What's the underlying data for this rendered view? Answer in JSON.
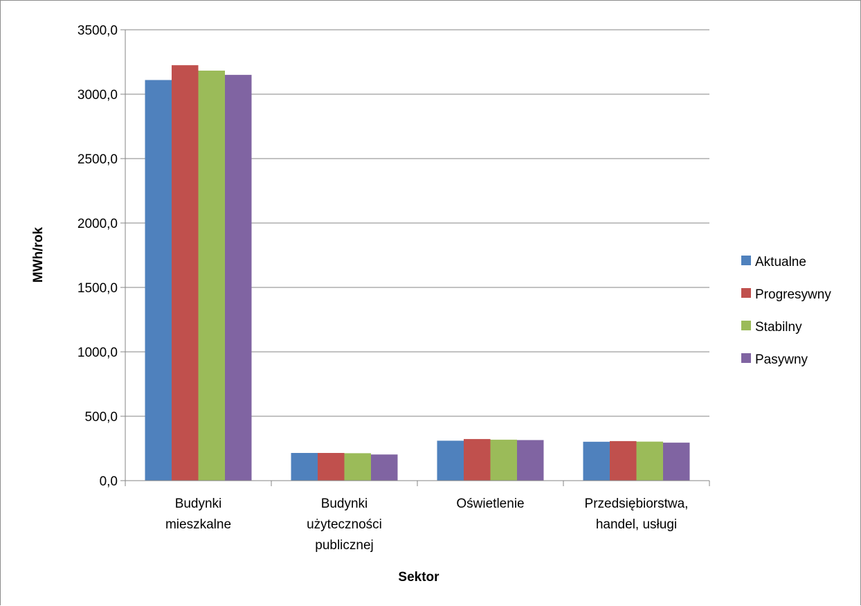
{
  "chart_data": {
    "type": "bar",
    "title": "",
    "xlabel": "Sektor",
    "ylabel": "MWh/rok",
    "ylim": [
      0,
      3500
    ],
    "ytick_step": 500,
    "ytick_labels": [
      "0,0",
      "500,0",
      "1000,0",
      "1500,0",
      "2000,0",
      "2500,0",
      "3000,0",
      "3500,0"
    ],
    "grid": true,
    "legend_position": "right",
    "categories": [
      [
        "Budynki",
        "mieszkalne"
      ],
      [
        "Budynki",
        "użyteczności",
        "publicznej"
      ],
      [
        "Oświetlenie"
      ],
      [
        "Przedsiębiorstwa,",
        "handel, usługi"
      ]
    ],
    "series": [
      {
        "name": "Aktualne",
        "color": "#4F81BD",
        "values": [
          3110,
          215,
          310,
          302
        ]
      },
      {
        "name": "Progresywny",
        "color": "#C0504D",
        "values": [
          3225,
          215,
          323,
          307
        ]
      },
      {
        "name": "Stabilny",
        "color": "#9BBB59",
        "values": [
          3183,
          213,
          318,
          303
        ]
      },
      {
        "name": "Pasywny",
        "color": "#8064A2",
        "values": [
          3150,
          203,
          315,
          295
        ]
      }
    ]
  }
}
